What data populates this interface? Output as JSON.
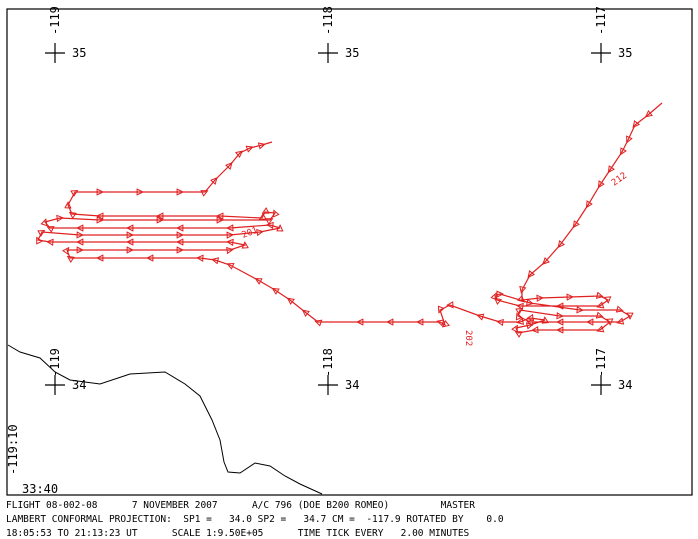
{
  "grid": {
    "longitudes": [
      "-119",
      "-118",
      "-117"
    ],
    "latitudes": [
      "35",
      "34"
    ]
  },
  "corner": {
    "longitude": "-119:10",
    "latitude": "33:40"
  },
  "track_labels": [
    "201",
    "202",
    "212"
  ],
  "footer": {
    "line1": "FLIGHT 08-002-08      7 NOVEMBER 2007      A/C 796 (DOE B200 ROMEO)         MASTER",
    "line2": "LAMBERT CONFORMAL PROJECTION:  SP1 =   34.0 SP2 =   34.7 CM =  -117.9 ROTATED BY    0.0",
    "line3": "18:05:53 TO 21:13:23 UT      SCALE 1:9.50E+05      TIME TICK EVERY   2.00 MINUTES"
  }
}
